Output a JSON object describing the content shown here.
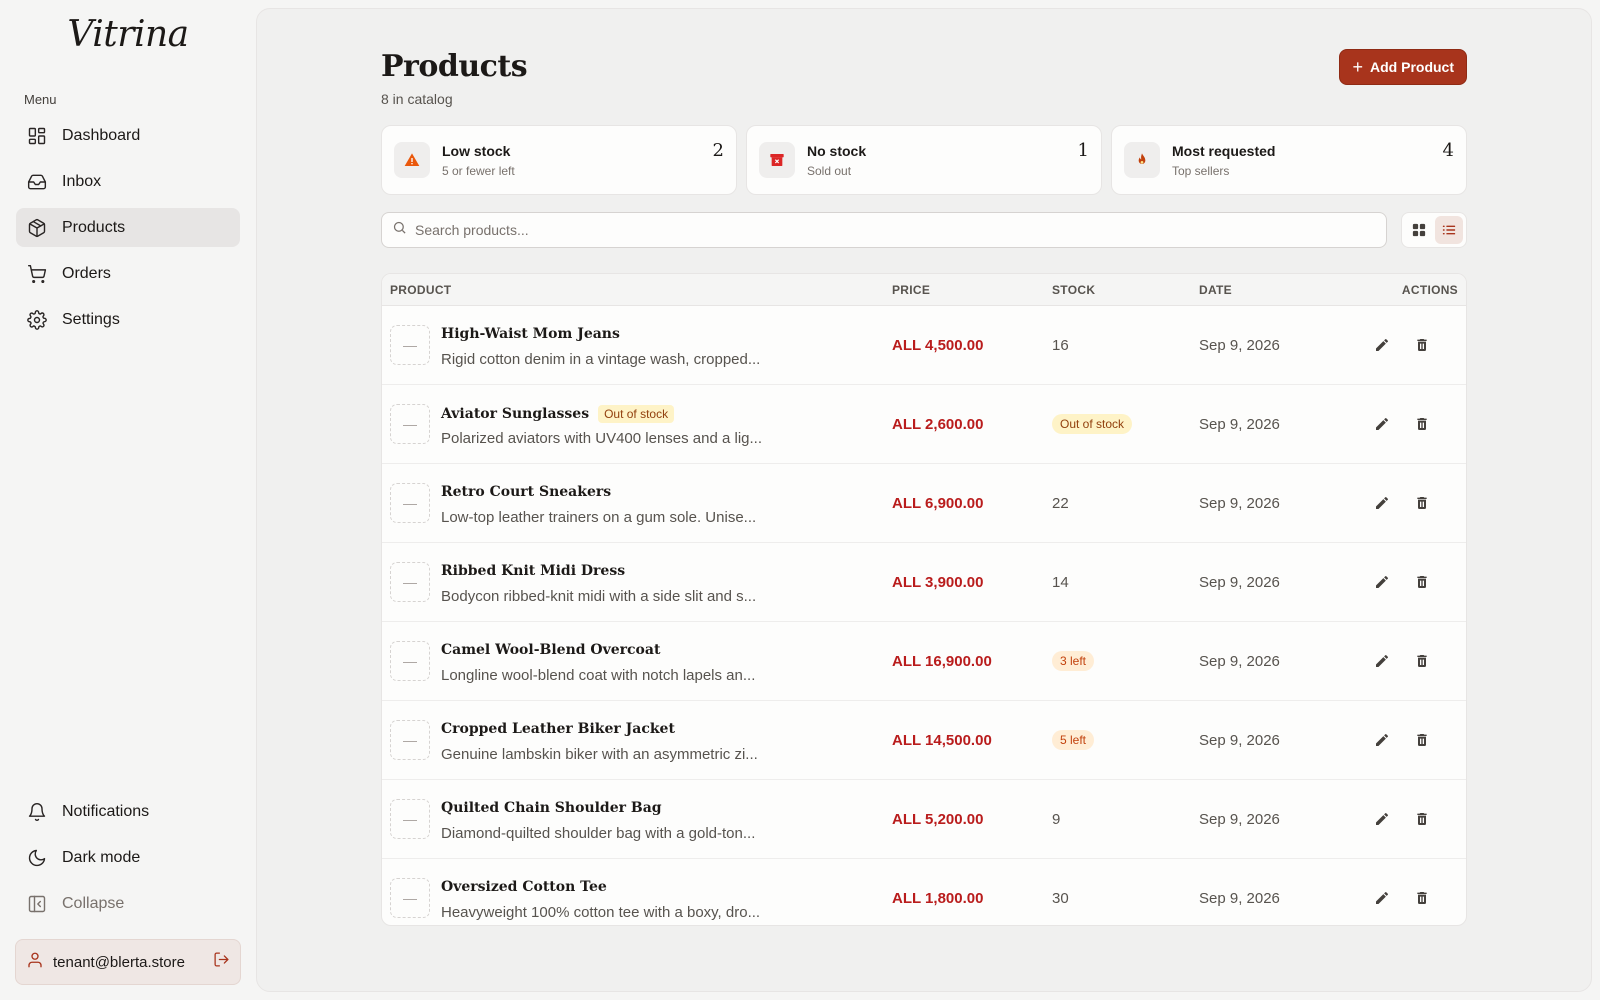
{
  "app": {
    "logo": "Vitrina"
  },
  "sidebar": {
    "menu_label": "Menu",
    "items": [
      {
        "label": "Dashboard",
        "icon": "dashboard-icon"
      },
      {
        "label": "Inbox",
        "icon": "inbox-icon"
      },
      {
        "label": "Products",
        "icon": "package-icon",
        "active": true
      },
      {
        "label": "Orders",
        "icon": "cart-icon"
      },
      {
        "label": "Settings",
        "icon": "gear-icon"
      }
    ],
    "bottom_items": [
      {
        "label": "Notifications",
        "icon": "bell-icon"
      },
      {
        "label": "Dark mode",
        "icon": "moon-icon"
      },
      {
        "label": "Collapse",
        "icon": "collapse-icon"
      }
    ],
    "user": {
      "email": "tenant@blerta.store"
    }
  },
  "header": {
    "title": "Products",
    "subtitle": "8 in catalog",
    "add_button": "Add Product"
  },
  "stats": [
    {
      "title": "Low stock",
      "subtitle": "5 or fewer left",
      "count": "2",
      "icon": "warning-icon",
      "color": "#ea580c"
    },
    {
      "title": "No stock",
      "subtitle": "Sold out",
      "count": "1",
      "icon": "archive-x-icon",
      "color": "#dc2626"
    },
    {
      "title": "Most requested",
      "subtitle": "Top sellers",
      "count": "4",
      "icon": "flame-icon",
      "color": "#c2410c"
    }
  ],
  "search": {
    "placeholder": "Search products...",
    "value": ""
  },
  "table": {
    "columns": [
      "PRODUCT",
      "PRICE",
      "STOCK",
      "DATE",
      "ACTIONS"
    ],
    "rows": [
      {
        "thumb": "—",
        "name": "High-Waist Mom Jeans",
        "tag": "",
        "desc": "Rigid cotton denim in a vintage wash, cropped...",
        "price": "ALL 4,500.00",
        "stock": "16",
        "stock_badge": "",
        "date": "Sep 9, 2026"
      },
      {
        "thumb": "—",
        "name": "Aviator Sunglasses",
        "tag": "Out of stock",
        "desc": "Polarized aviators with UV400 lenses and a lig...",
        "price": "ALL 2,600.00",
        "stock": "",
        "stock_badge": "Out of stock",
        "date": "Sep 9, 2026"
      },
      {
        "thumb": "—",
        "name": "Retro Court Sneakers",
        "tag": "",
        "desc": "Low-top leather trainers on a gum sole. Unise...",
        "price": "ALL 6,900.00",
        "stock": "22",
        "stock_badge": "",
        "date": "Sep 9, 2026"
      },
      {
        "thumb": "—",
        "name": "Ribbed Knit Midi Dress",
        "tag": "",
        "desc": "Bodycon ribbed-knit midi with a side slit and s...",
        "price": "ALL 3,900.00",
        "stock": "14",
        "stock_badge": "",
        "date": "Sep 9, 2026"
      },
      {
        "thumb": "—",
        "name": "Camel Wool-Blend Overcoat",
        "tag": "",
        "desc": "Longline wool-blend coat with notch lapels an...",
        "price": "ALL 16,900.00",
        "stock": "",
        "stock_badge": "3 left",
        "date": "Sep 9, 2026"
      },
      {
        "thumb": "—",
        "name": "Cropped Leather Biker Jacket",
        "tag": "",
        "desc": "Genuine lambskin biker with an asymmetric zi...",
        "price": "ALL 14,500.00",
        "stock": "",
        "stock_badge": "5 left",
        "date": "Sep 9, 2026"
      },
      {
        "thumb": "—",
        "name": "Quilted Chain Shoulder Bag",
        "tag": "",
        "desc": "Diamond-quilted shoulder bag with a gold-ton...",
        "price": "ALL 5,200.00",
        "stock": "9",
        "stock_badge": "",
        "date": "Sep 9, 2026"
      },
      {
        "thumb": "—",
        "name": "Oversized Cotton Tee",
        "tag": "",
        "desc": "Heavyweight 100% cotton tee with a boxy, dro...",
        "price": "ALL 1,800.00",
        "stock": "30",
        "stock_badge": "",
        "date": "Sep 9, 2026"
      }
    ]
  },
  "colors": {
    "accent": "#a8341c",
    "price": "#b91c1c",
    "sidebar_active": "#e7e5e4"
  }
}
